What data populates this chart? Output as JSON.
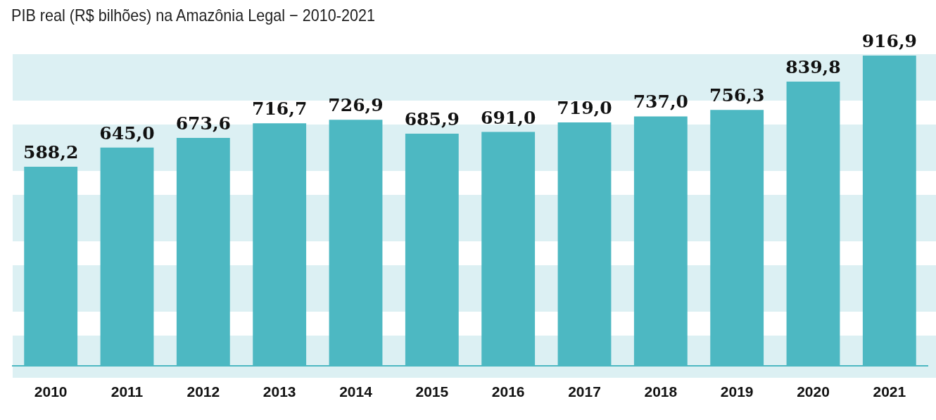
{
  "chart_data": {
    "type": "bar",
    "subtitle": "PIB real (R$ bilhões) na Amazônia Legal − 2010-2021",
    "categories": [
      "2010",
      "2011",
      "2012",
      "2013",
      "2014",
      "2015",
      "2016",
      "2017",
      "2018",
      "2019",
      "2020",
      "2021"
    ],
    "values": [
      588.2,
      645.0,
      673.6,
      716.7,
      726.9,
      685.9,
      691.0,
      719.0,
      737.0,
      756.3,
      839.8,
      916.9
    ],
    "value_labels": [
      "588,2",
      "645,0",
      "673,6",
      "716,7",
      "726,9",
      "685,9",
      "691,0",
      "719,0",
      "737,0",
      "756,3",
      "839,8",
      "916,9"
    ],
    "color": "#4db8c2",
    "tick_labels": "x",
    "grid": false,
    "legend": false
  }
}
